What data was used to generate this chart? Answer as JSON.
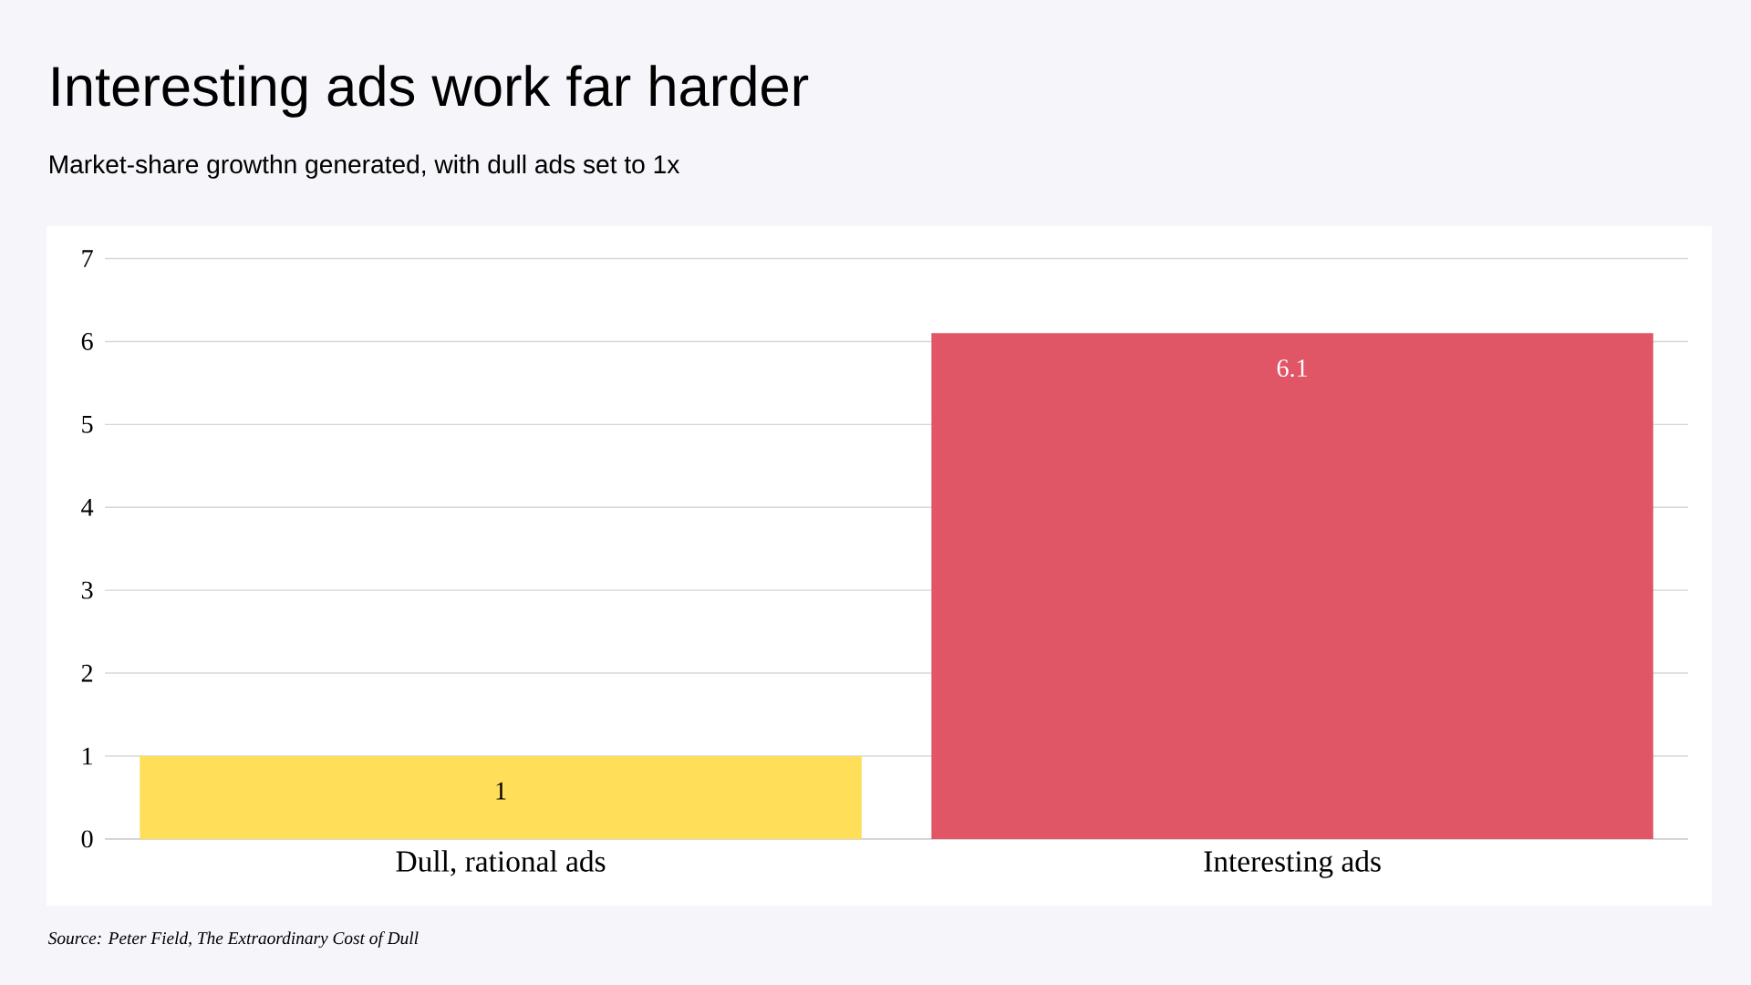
{
  "chart_data": {
    "type": "bar",
    "title": "Interesting ads work far harder",
    "subtitle": "Market-share growthn generated, with dull ads set to 1x",
    "categories": [
      "Dull, rational ads",
      "Interesting ads"
    ],
    "values": [
      1,
      6.1
    ],
    "colors": [
      "#ffde59",
      "#e05666"
    ],
    "ylim": [
      0,
      7
    ],
    "yticks": [
      0,
      1,
      2,
      3,
      4,
      5,
      6,
      7
    ],
    "grid": "y",
    "data_labels": true,
    "annotations": [
      "Source: Peter Field, The Extraordinary Cost of Dull"
    ]
  }
}
